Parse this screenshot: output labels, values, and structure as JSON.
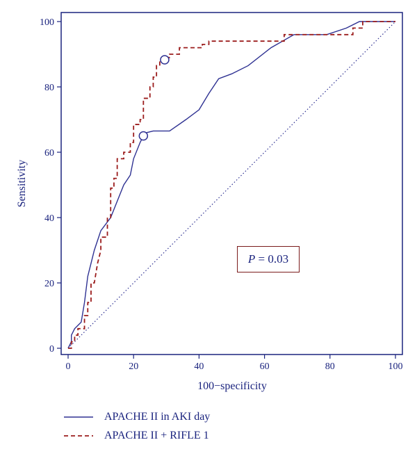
{
  "chart_data": {
    "type": "line",
    "xlabel": "100−specificity",
    "ylabel": "Sensitivity",
    "xlim": [
      0,
      100
    ],
    "ylim": [
      0,
      100
    ],
    "x_ticks": [
      0,
      20,
      40,
      60,
      80,
      100
    ],
    "y_ticks": [
      0,
      20,
      40,
      60,
      80,
      100
    ],
    "grid": false,
    "legend_position": "bottom-left",
    "annotation": {
      "p_label": "P",
      "p_text": " = 0.03"
    },
    "series": [
      {
        "name": "APACHE II in AKI day",
        "color": "#2e3192",
        "style": "solid",
        "x": [
          0,
          1,
          1,
          2,
          4,
          5,
          6,
          7,
          8,
          10,
          13,
          15,
          17,
          19,
          20,
          22,
          23,
          24,
          26,
          28,
          31,
          36,
          40,
          43,
          46,
          50,
          55,
          62,
          69,
          75,
          79,
          85,
          89,
          92,
          100
        ],
        "y": [
          0,
          2,
          4,
          6,
          8,
          14,
          22,
          26,
          30,
          36,
          40,
          45,
          50,
          53,
          58,
          63,
          65,
          66,
          66.5,
          66.5,
          66.5,
          70,
          73,
          78,
          82.5,
          84,
          86.5,
          92,
          96,
          96,
          96,
          98,
          100,
          100,
          100
        ],
        "marker": {
          "x": 23,
          "y": 65
        }
      },
      {
        "name": "APACHE II + RIFLE 1",
        "color": "#9b1c1c",
        "style": "dashed",
        "x": [
          0,
          1,
          1,
          2,
          2,
          3,
          3,
          5,
          5,
          6,
          6,
          7,
          7,
          8,
          9,
          10,
          10,
          12,
          12,
          13,
          13,
          14,
          14,
          15,
          15,
          17,
          17,
          19,
          19,
          20,
          20,
          22,
          22,
          23,
          23,
          25,
          25,
          26,
          26,
          27,
          27,
          28,
          28,
          29,
          29,
          31,
          31,
          34,
          34,
          36,
          36,
          38,
          38,
          41,
          41,
          43,
          43,
          47,
          47,
          66,
          66,
          80,
          80,
          87,
          87,
          90,
          90,
          100
        ],
        "y": [
          0,
          0,
          2,
          2,
          4,
          4,
          6,
          6,
          10,
          10,
          14,
          14,
          20,
          20,
          26,
          30,
          34,
          34,
          40,
          40,
          49,
          49,
          52,
          52,
          58,
          58,
          60,
          60,
          63,
          63,
          68.5,
          68.5,
          70,
          70,
          76.5,
          76.5,
          80,
          80,
          83,
          83,
          86.5,
          86.5,
          88,
          88,
          89,
          89,
          90,
          90,
          92,
          92,
          92,
          92,
          92,
          92,
          93,
          93,
          94,
          94,
          94,
          94,
          96,
          96,
          96,
          96,
          98,
          98,
          100,
          100
        ],
        "marker": {
          "x": 29.5,
          "y": 88.3
        }
      },
      {
        "name": "",
        "color": "#2e3192",
        "style": "dotted",
        "x": [
          0,
          100
        ],
        "y": [
          0,
          100
        ]
      }
    ]
  }
}
